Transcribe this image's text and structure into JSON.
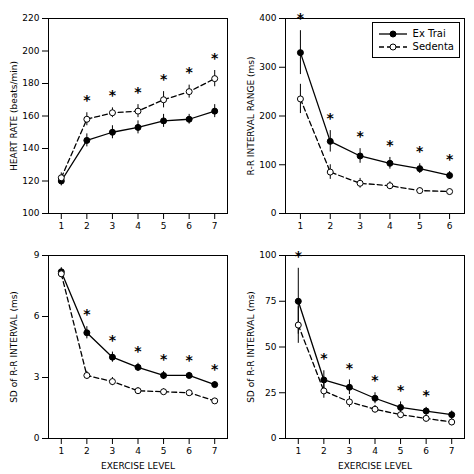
{
  "chart_data": [
    {
      "type": "line",
      "ylabel": "HEART RATE (beats/min)",
      "x": [
        1,
        2,
        3,
        4,
        5,
        6,
        7
      ],
      "xlim": [
        0.5,
        7.5
      ],
      "xticks": [
        1,
        2,
        3,
        4,
        5,
        6,
        7
      ],
      "ylim": [
        100,
        220
      ],
      "yticks": [
        100,
        120,
        140,
        160,
        180,
        200,
        220
      ],
      "grid": false,
      "series": [
        {
          "name": "Ex Trai",
          "color": "black",
          "line_style": "solid",
          "marker": "filled_circle",
          "values": [
            120,
            145,
            150,
            153,
            157,
            158,
            163
          ],
          "errors": [
            3,
            4,
            4,
            4,
            4,
            3,
            4
          ]
        },
        {
          "name": "Sedenta",
          "color": "black",
          "line_style": "dashed",
          "marker": "open_circle",
          "values": [
            122,
            158,
            162,
            163,
            170,
            175,
            183
          ],
          "errors": [
            3,
            4,
            3,
            4,
            5,
            4,
            5
          ]
        }
      ],
      "annotations": [
        {
          "x": 2,
          "text": "*"
        },
        {
          "x": 3,
          "text": "*"
        },
        {
          "x": 4,
          "text": "*"
        },
        {
          "x": 5,
          "text": "*"
        },
        {
          "x": 6,
          "text": "*"
        },
        {
          "x": 7,
          "text": "*"
        }
      ]
    },
    {
      "type": "line",
      "ylabel": "R-R INTERVAL RANGE (ms)",
      "x": [
        1,
        2,
        3,
        4,
        5,
        6
      ],
      "xlim": [
        0.5,
        6.5
      ],
      "xticks": [
        1,
        2,
        3,
        4,
        5,
        6
      ],
      "ylim": [
        0,
        400
      ],
      "yticks": [
        0,
        100,
        200,
        300,
        400
      ],
      "grid": false,
      "legend": "upper right",
      "series": [
        {
          "name": "Ex Trai",
          "color": "black",
          "line_style": "solid",
          "marker": "filled_circle",
          "values": [
            330,
            148,
            118,
            103,
            92,
            78
          ],
          "errors": [
            45,
            22,
            15,
            12,
            10,
            8
          ]
        },
        {
          "name": "Sedenta",
          "color": "black",
          "line_style": "dashed",
          "marker": "open_circle",
          "values": [
            235,
            85,
            62,
            57,
            47,
            45
          ],
          "errors": [
            30,
            15,
            10,
            8,
            6,
            5
          ]
        }
      ],
      "annotations": [
        {
          "x": 1,
          "text": "*"
        },
        {
          "x": 2,
          "text": "*"
        },
        {
          "x": 3,
          "text": "*"
        },
        {
          "x": 4,
          "text": "*"
        },
        {
          "x": 5,
          "text": "*"
        },
        {
          "x": 6,
          "text": "*"
        }
      ]
    },
    {
      "type": "line",
      "ylabel": "SD of R-R INTERVAL (ms)",
      "xlabel": "EXERCISE LEVEL",
      "x": [
        1,
        2,
        3,
        4,
        5,
        6,
        7
      ],
      "xlim": [
        0.5,
        7.5
      ],
      "xticks": [
        1,
        2,
        3,
        4,
        5,
        6,
        7
      ],
      "ylim": [
        0,
        9
      ],
      "yticks": [
        0,
        3,
        6,
        9
      ],
      "grid": false,
      "series": [
        {
          "name": "Ex Trai",
          "color": "black",
          "line_style": "solid",
          "marker": "filled_circle",
          "values": [
            8.2,
            5.2,
            4.0,
            3.5,
            3.1,
            3.1,
            2.65
          ],
          "errors": [
            0.2,
            0.3,
            0.25,
            0.2,
            0.2,
            0.15,
            0.15
          ]
        },
        {
          "name": "Sedenta",
          "color": "black",
          "line_style": "dashed",
          "marker": "open_circle",
          "values": [
            8.1,
            3.1,
            2.8,
            2.35,
            2.3,
            2.25,
            1.85
          ],
          "errors": [
            0.2,
            0.2,
            0.2,
            0.15,
            0.15,
            0.12,
            0.12
          ]
        }
      ],
      "annotations": [
        {
          "x": 2,
          "text": "*"
        },
        {
          "x": 3,
          "text": "*"
        },
        {
          "x": 4,
          "text": "*"
        },
        {
          "x": 5,
          "text": "*"
        },
        {
          "x": 6,
          "text": "*"
        },
        {
          "x": 7,
          "text": "*"
        }
      ]
    },
    {
      "type": "line",
      "ylabel": "SD of R-R INTERVAL (ms)",
      "xlabel": "EXERCISE LEVEL",
      "x": [
        1,
        2,
        3,
        4,
        5,
        6,
        7
      ],
      "xlim": [
        0.5,
        7.5
      ],
      "xticks": [
        1,
        2,
        3,
        4,
        5,
        6,
        7
      ],
      "ylim": [
        0,
        100
      ],
      "yticks": [
        0,
        25,
        50,
        75,
        100
      ],
      "grid": false,
      "series": [
        {
          "name": "Ex Trai",
          "color": "black",
          "line_style": "solid",
          "marker": "filled_circle",
          "values": [
            75,
            32,
            28,
            22,
            17,
            15,
            13
          ],
          "errors": [
            18,
            5,
            4,
            3,
            3,
            2,
            2
          ]
        },
        {
          "name": "Sedenta",
          "color": "black",
          "line_style": "dashed",
          "marker": "open_circle",
          "values": [
            62,
            26,
            20,
            16,
            13,
            11,
            9
          ],
          "errors": [
            10,
            4,
            3,
            2,
            2,
            2,
            2
          ]
        }
      ],
      "annotations": [
        {
          "x": 1,
          "text": "*"
        },
        {
          "x": 2,
          "text": "*"
        },
        {
          "x": 3,
          "text": "*"
        },
        {
          "x": 4,
          "text": "*"
        },
        {
          "x": 5,
          "text": "*"
        },
        {
          "x": 6,
          "text": "*"
        }
      ]
    }
  ]
}
